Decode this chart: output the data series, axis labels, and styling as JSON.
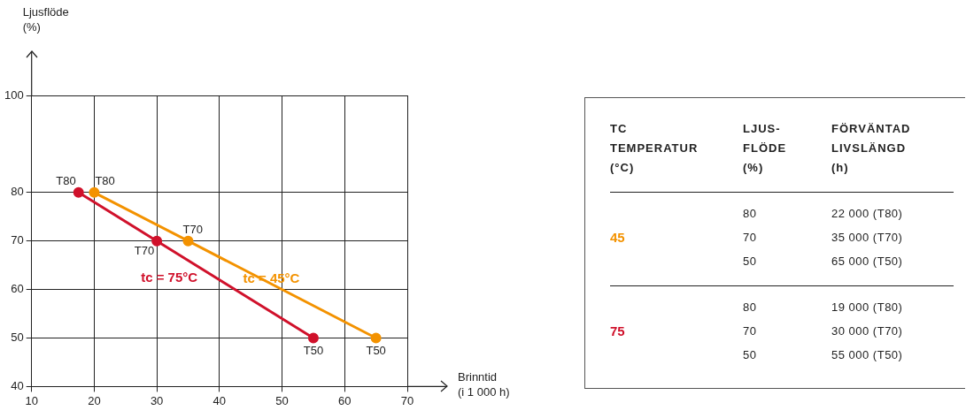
{
  "chart_data": [
    {
      "type": "line",
      "xlabel": "Brinntid\n(i 1 000 h)",
      "ylabel": "Ljusflöde\n(%)",
      "series": [
        {
          "name": "tc = 75°C",
          "color": "#d0112b",
          "x": [
            17.5,
            30,
            55
          ],
          "values": [
            80,
            70,
            50
          ]
        },
        {
          "name": "tc = 45°C",
          "color": "#f39200",
          "x": [
            20,
            35,
            65
          ],
          "values": [
            80,
            70,
            50
          ]
        }
      ],
      "xlim": [
        10,
        70
      ],
      "xticks": [
        10,
        20,
        30,
        40,
        50,
        60,
        70
      ],
      "ylim": [
        40,
        100
      ],
      "yticks": [
        40,
        50,
        60,
        70,
        80,
        100
      ],
      "grid": true,
      "legend": false,
      "marker": "circle",
      "line_style": "solid",
      "annotations": [
        {
          "text": "T80",
          "x": 17.5,
          "y": 80
        },
        {
          "text": "T70",
          "x": 30,
          "y": 70
        },
        {
          "text": "T50",
          "x": 55,
          "y": 50
        },
        {
          "text": "T80",
          "x": 20,
          "y": 80
        },
        {
          "text": "T70",
          "x": 35,
          "y": 70
        },
        {
          "text": "T50",
          "x": 65,
          "y": 50
        }
      ]
    },
    {
      "type": "other",
      "colors": [
        "#f39200",
        "#d0112b"
      ],
      "annotations": [
        "TC\nTEMPERATUR\n(°C)",
        "LJUS-\nFLÖDE\n(%)",
        "FÖRVÄNTAD\nLIVSLÄNGD\n(h)",
        "45",
        "80",
        "22 000 (T80)",
        "70",
        "35 000 (T70)",
        "50",
        "65 000 (T50)",
        "75",
        "80",
        "19 000 (T80)",
        "70",
        "30 000 (T70)",
        "50",
        "55 000 (T50)"
      ]
    }
  ]
}
